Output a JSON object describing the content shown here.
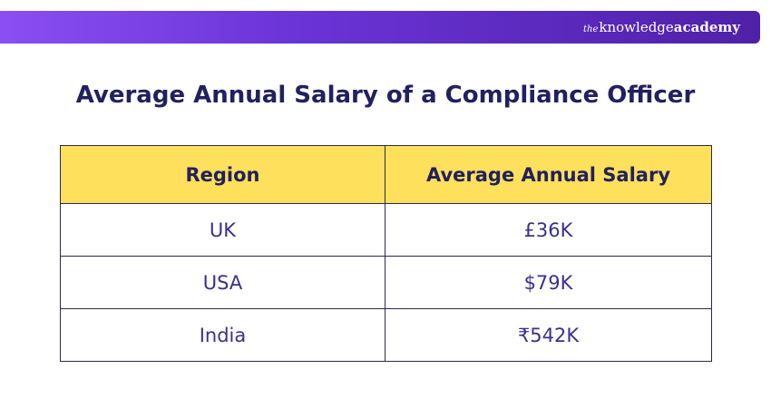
{
  "header": {
    "brand": {
      "prefix": "the",
      "knowledge": "knowledge",
      "academy": "academy"
    },
    "colors": {
      "gradient_start": "#8a4ef2",
      "gradient_end": "#4f21a8"
    }
  },
  "main": {
    "title": "Average Annual Salary of a Compliance Officer",
    "table": {
      "columns": [
        "Region",
        "Average Annual Salary"
      ],
      "rows": [
        [
          "UK",
          "£36K"
        ],
        [
          "USA",
          "$79K"
        ],
        [
          "India",
          "₹542K"
        ]
      ],
      "colors": {
        "header_background": "#ffe05c",
        "header_text": "#22205e",
        "cell_text": "#3b2f8f"
      }
    }
  }
}
